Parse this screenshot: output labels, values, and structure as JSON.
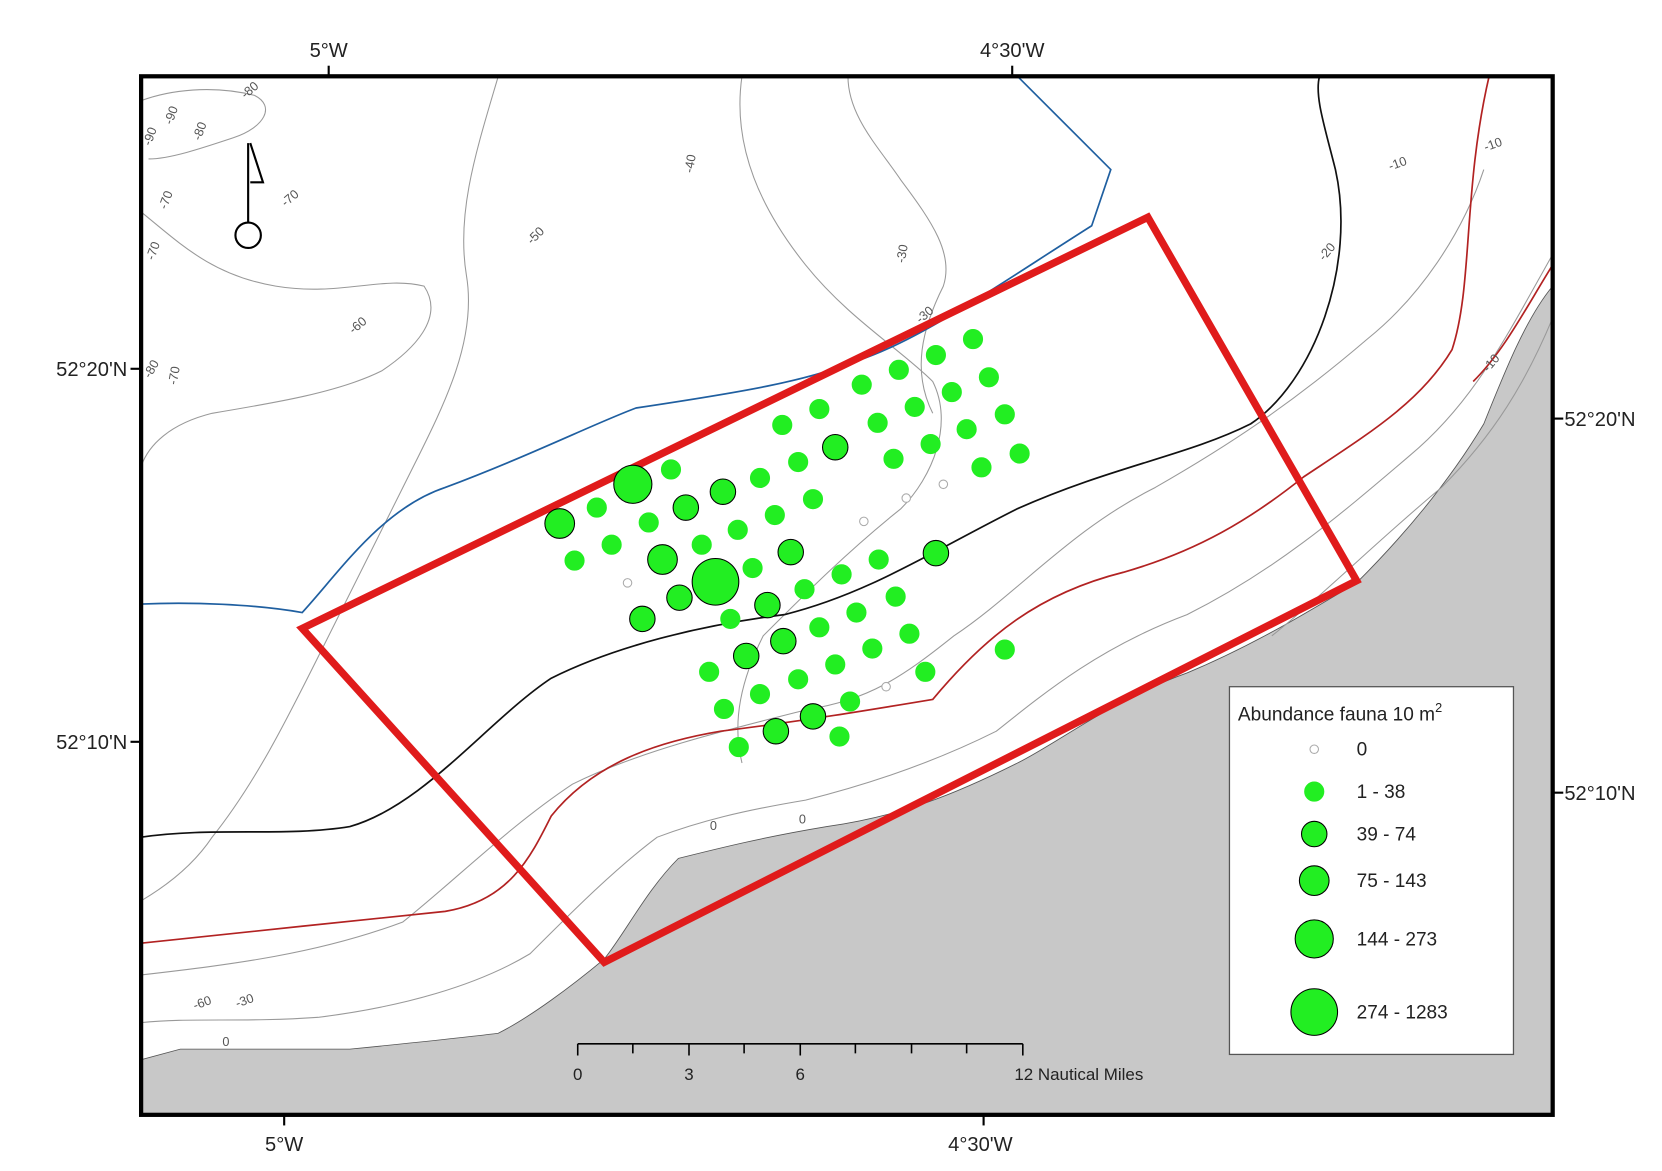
{
  "axes": {
    "top": [
      "5°W",
      "4°30'W"
    ],
    "bottom": [
      "5°W",
      "4°30'W"
    ],
    "left": [
      "52°20'N",
      "52°10'N"
    ],
    "right": [
      "52°20'N",
      "52°10'N"
    ]
  },
  "contour_labels": [
    "-80",
    "-90",
    "-90",
    "-80",
    "-70",
    "-70",
    "-70",
    "-40",
    "-50",
    "-60",
    "-30",
    "-30",
    "-80",
    "-70",
    "-10",
    "-10",
    "-20",
    "-10",
    "0",
    "0",
    "-60",
    "-30",
    "0"
  ],
  "legend": {
    "title": "Abundance fauna 10 m",
    "title_superscript": "2",
    "classes": [
      "0",
      "1 - 38",
      "39 - 74",
      "75 - 143",
      "144 - 273",
      "274 - 1283"
    ]
  },
  "scale_bar": {
    "labels": [
      "0",
      "3",
      "6",
      "12 Nautical Miles"
    ]
  }
}
